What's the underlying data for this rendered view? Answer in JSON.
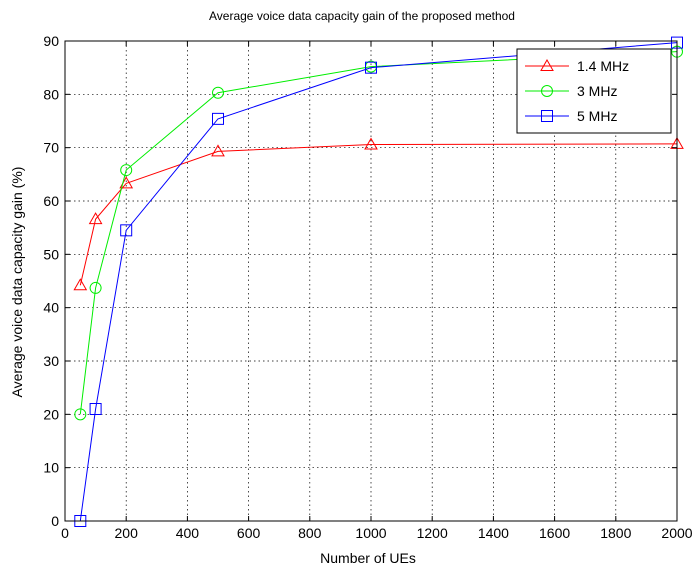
{
  "chart_data": {
    "type": "line",
    "title": "Average voice data capacity gain of the proposed method",
    "xlabel": "Number of UEs",
    "ylabel": "Average voice data capacity gain (%)",
    "xlim": [
      0,
      2000
    ],
    "ylim": [
      0,
      90
    ],
    "xticks": [
      0,
      200,
      400,
      600,
      800,
      1000,
      1200,
      1400,
      1600,
      1800,
      2000
    ],
    "yticks": [
      0,
      10,
      20,
      30,
      40,
      50,
      60,
      70,
      80,
      90
    ],
    "grid": true,
    "legend_position": "top-right",
    "x": [
      50,
      100,
      200,
      500,
      1000,
      2000
    ],
    "series": [
      {
        "name": "1.4 MHz",
        "color": "#ff0000",
        "marker": "triangle",
        "values": [
          44.2,
          56.6,
          63.3,
          69.3,
          70.6,
          70.7
        ]
      },
      {
        "name": "3 MHz",
        "color": "#00ee00",
        "marker": "circle",
        "values": [
          20.0,
          43.7,
          65.8,
          80.3,
          85.2,
          88.0
        ]
      },
      {
        "name": "5 MHz",
        "color": "#0000ff",
        "marker": "square",
        "values": [
          0.0,
          21.0,
          54.5,
          75.4,
          85.0,
          89.7
        ]
      }
    ]
  }
}
